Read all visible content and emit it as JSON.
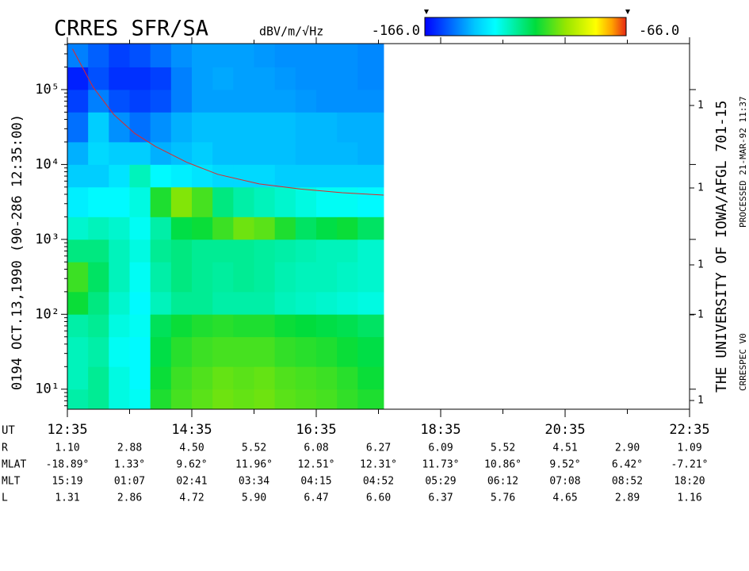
{
  "chart_data": {
    "type": "spectrogram",
    "title": "CRRES SFR/SA",
    "colorbar_label": "dBV/m/√Hz",
    "clim": [
      -166,
      -66
    ],
    "cticks": [
      {
        "value": -166,
        "label": "-166.0"
      },
      {
        "value": -66,
        "label": "-66.0"
      }
    ],
    "xlim": [
      755,
      1355
    ],
    "xticks": [
      {
        "value": 755,
        "label": "12:35"
      },
      {
        "value": 875,
        "label": "14:35"
      },
      {
        "value": 995,
        "label": "16:35"
      },
      {
        "value": 1115,
        "label": "18:35"
      },
      {
        "value": 1235,
        "label": "20:35"
      },
      {
        "value": 1355,
        "label": "22:35"
      }
    ],
    "ylim": [
      5.4,
      411000
    ],
    "log_y": true,
    "yticks": [
      {
        "value": 10,
        "label": "10¹"
      },
      {
        "value": 100,
        "label": "10²"
      },
      {
        "value": 1000,
        "label": "10³"
      },
      {
        "value": 10000,
        "label": "10⁴"
      },
      {
        "value": 100000,
        "label": "10⁵"
      }
    ],
    "y2_labels": [
      "1",
      "1",
      "1",
      "1",
      "1"
    ],
    "left_label": "0194   OCT.13,1990  (90-286 12:35:00)",
    "right_label": "THE UNIVERSITY OF IOWA/AFGL 701-15",
    "processed_label": "PROCESSED 21-MAR-92  11:37",
    "version_label": "CRRESPEC V0",
    "x_bins": [
      755,
      775,
      795,
      815,
      835,
      855,
      875,
      895,
      915,
      935,
      955,
      975,
      995,
      1015,
      1035,
      1060
    ],
    "y_bins": [
      5.4,
      10,
      20,
      50,
      100,
      200,
      500,
      1000,
      2000,
      5000,
      10000,
      20000,
      50000,
      100000,
      200000,
      411000
    ],
    "z": [
      [
        -122,
        -120,
        -128,
        -130,
        -108,
        -104,
        -102,
        -100,
        -101,
        -100,
        -102,
        -103,
        -104,
        -106,
        -108
      ],
      [
        -124,
        -120,
        -128,
        -132,
        -110,
        -105,
        -103,
        -101,
        -102,
        -101,
        -103,
        -104,
        -105,
        -107,
        -110
      ],
      [
        -124,
        -122,
        -130,
        -132,
        -112,
        -107,
        -105,
        -104,
        -104,
        -104,
        -106,
        -107,
        -108,
        -110,
        -112
      ],
      [
        -122,
        -120,
        -128,
        -130,
        -114,
        -110,
        -108,
        -107,
        -108,
        -108,
        -110,
        -111,
        -112,
        -113,
        -115
      ],
      [
        -110,
        -118,
        -126,
        -132,
        -124,
        -120,
        -120,
        -122,
        -122,
        -122,
        -124,
        -125,
        -126,
        -127,
        -128
      ],
      [
        -105,
        -115,
        -124,
        -130,
        -122,
        -118,
        -120,
        -121,
        -120,
        -121,
        -123,
        -124,
        -124,
        -125,
        -126
      ],
      [
        -118,
        -118,
        -124,
        -128,
        -120,
        -118,
        -120,
        -120,
        -120,
        -121,
        -122,
        -123,
        -124,
        -124,
        -126
      ],
      [
        -126,
        -124,
        -126,
        -130,
        -122,
        -112,
        -110,
        -105,
        -100,
        -102,
        -108,
        -115,
        -112,
        -110,
        -115
      ],
      [
        -134,
        -132,
        -132,
        -128,
        -108,
        -98,
        -104,
        -118,
        -122,
        -124,
        -126,
        -128,
        -130,
        -130,
        -132
      ],
      [
        -140,
        -140,
        -136,
        -124,
        -132,
        -134,
        -136,
        -138,
        -138,
        -138,
        -140,
        -140,
        -140,
        -140,
        -140
      ],
      [
        -144,
        -138,
        -140,
        -140,
        -144,
        -142,
        -140,
        -142,
        -142,
        -142,
        -142,
        -143,
        -143,
        -143,
        -144
      ],
      [
        -152,
        -140,
        -148,
        -152,
        -148,
        -144,
        -142,
        -142,
        -142,
        -142,
        -142,
        -143,
        -143,
        -144,
        -144
      ],
      [
        -158,
        -150,
        -156,
        -158,
        -156,
        -150,
        -146,
        -146,
        -146,
        -146,
        -146,
        -147,
        -148,
        -148,
        -148
      ],
      [
        -162,
        -156,
        -160,
        -160,
        -158,
        -150,
        -146,
        -145,
        -146,
        -146,
        -147,
        -148,
        -148,
        -148,
        -149
      ],
      [
        -150,
        -154,
        -158,
        -156,
        -152,
        -148,
        -146,
        -146,
        -146,
        -147,
        -148,
        -148,
        -148,
        -148,
        -149
      ]
    ],
    "line": {
      "color": "#e02828",
      "x": [
        760,
        780,
        800,
        820,
        840,
        870,
        900,
        940,
        980,
        1020,
        1060
      ],
      "values": [
        350000,
        107000,
        46000,
        26000,
        17400,
        10700,
        7400,
        5500,
        4700,
        4200,
        3900
      ]
    },
    "ephemeris": {
      "ut_label": "UT",
      "rows": [
        {
          "label": "R",
          "values": [
            "1.10",
            "2.88",
            "4.50",
            "5.52",
            "6.08",
            "6.27",
            "6.09",
            "5.52",
            "4.51",
            "2.90",
            "1.09"
          ]
        },
        {
          "label": "MLAT",
          "values": [
            "-18.89°",
            "1.33°",
            "9.62°",
            "11.96°",
            "12.51°",
            "12.31°",
            "11.73°",
            "10.86°",
            "9.52°",
            "6.42°",
            "-7.21°"
          ]
        },
        {
          "label": "MLT",
          "values": [
            "15:19",
            "01:07",
            "02:41",
            "03:34",
            "04:15",
            "04:52",
            "05:29",
            "06:12",
            "07:08",
            "08:52",
            "18:20"
          ]
        },
        {
          "label": "L",
          "values": [
            "1.31",
            "2.86",
            "4.72",
            "5.90",
            "6.47",
            "6.60",
            "6.37",
            "5.76",
            "4.65",
            "2.89",
            "1.16"
          ]
        }
      ]
    }
  }
}
